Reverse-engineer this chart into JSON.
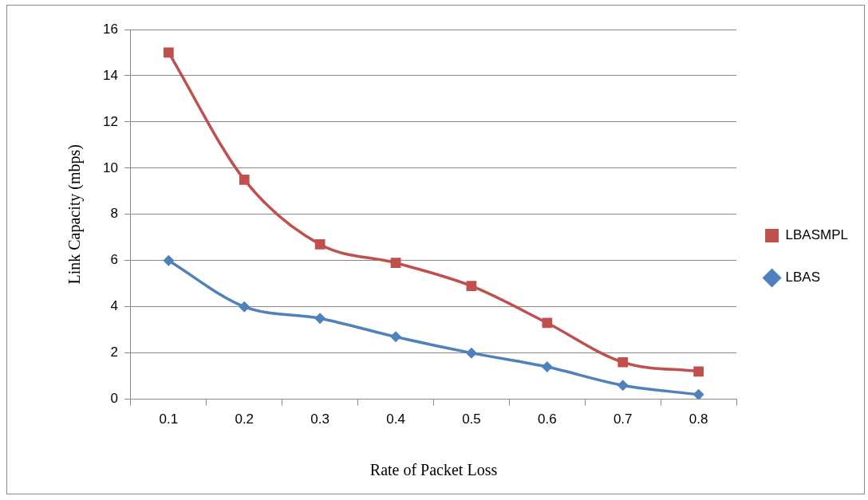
{
  "chart_data": {
    "type": "line",
    "xlabel": "Rate of Packet Loss",
    "ylabel": "Link Capacity (mbps)",
    "categories": [
      "0.1",
      "0.2",
      "0.3",
      "0.4",
      "0.5",
      "0.6",
      "0.7",
      "0.8"
    ],
    "series": [
      {
        "name": "LBASMPL",
        "color": "#c0504d",
        "marker": "square",
        "values": [
          15,
          9.5,
          6.7,
          5.9,
          4.9,
          3.3,
          1.6,
          1.2
        ]
      },
      {
        "name": "LBAS",
        "color": "#4f81bd",
        "marker": "diamond",
        "values": [
          6,
          4,
          3.5,
          2.7,
          2.0,
          1.4,
          0.6,
          0.2
        ]
      }
    ],
    "ylim": [
      0,
      16
    ],
    "yticks": [
      0,
      2,
      4,
      6,
      8,
      10,
      12,
      14,
      16
    ],
    "grid": "y",
    "legend": "right",
    "line_style": "solid"
  }
}
